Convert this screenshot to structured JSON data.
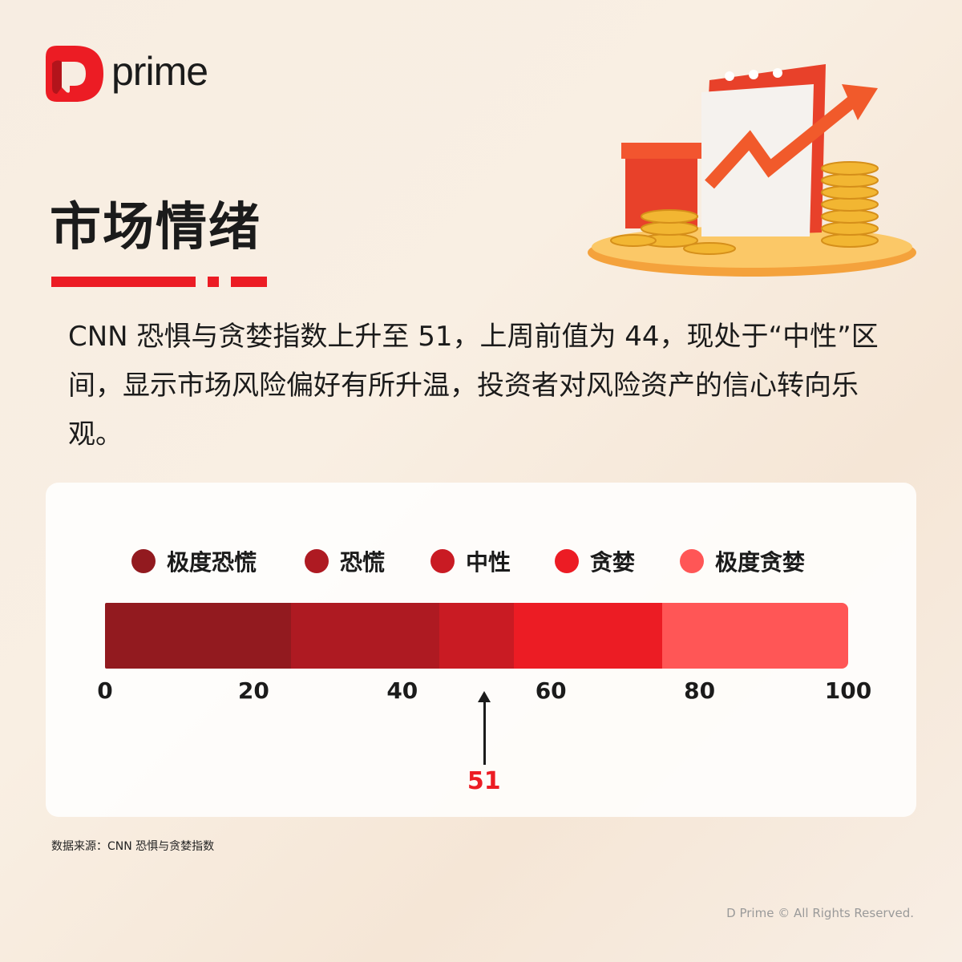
{
  "brand": {
    "name": "prime",
    "accent": "#ec1c24"
  },
  "title": "市场情绪",
  "description": "CNN 恐惧与贪婪指数上升至 51，上周前值为 44，现处于“中性”区间，显示市场风险偏好有所升温，投资者对风险资产的信心转向乐观。",
  "chart_data": {
    "type": "bar",
    "orientation": "horizontal-segmented-gauge",
    "xlim": [
      0,
      100
    ],
    "ticks": [
      0,
      20,
      40,
      60,
      80,
      100
    ],
    "segments": [
      {
        "name": "极度恐慌",
        "from": 0,
        "to": 25,
        "color": "#921a1f"
      },
      {
        "name": "恐慌",
        "from": 25,
        "to": 45,
        "color": "#ae1a22"
      },
      {
        "name": "中性",
        "from": 45,
        "to": 55,
        "color": "#c91b23"
      },
      {
        "name": "贪婪",
        "from": 55,
        "to": 75,
        "color": "#ec1c24"
      },
      {
        "name": "极度贪婪",
        "from": 75,
        "to": 100,
        "color": "#ff5656"
      }
    ],
    "indicator": {
      "value": 51,
      "label": "51"
    },
    "legend": "top"
  },
  "source": "数据来源：CNN 恐惧与贪婪指数",
  "copyright": "D Prime © All Rights Reserved."
}
